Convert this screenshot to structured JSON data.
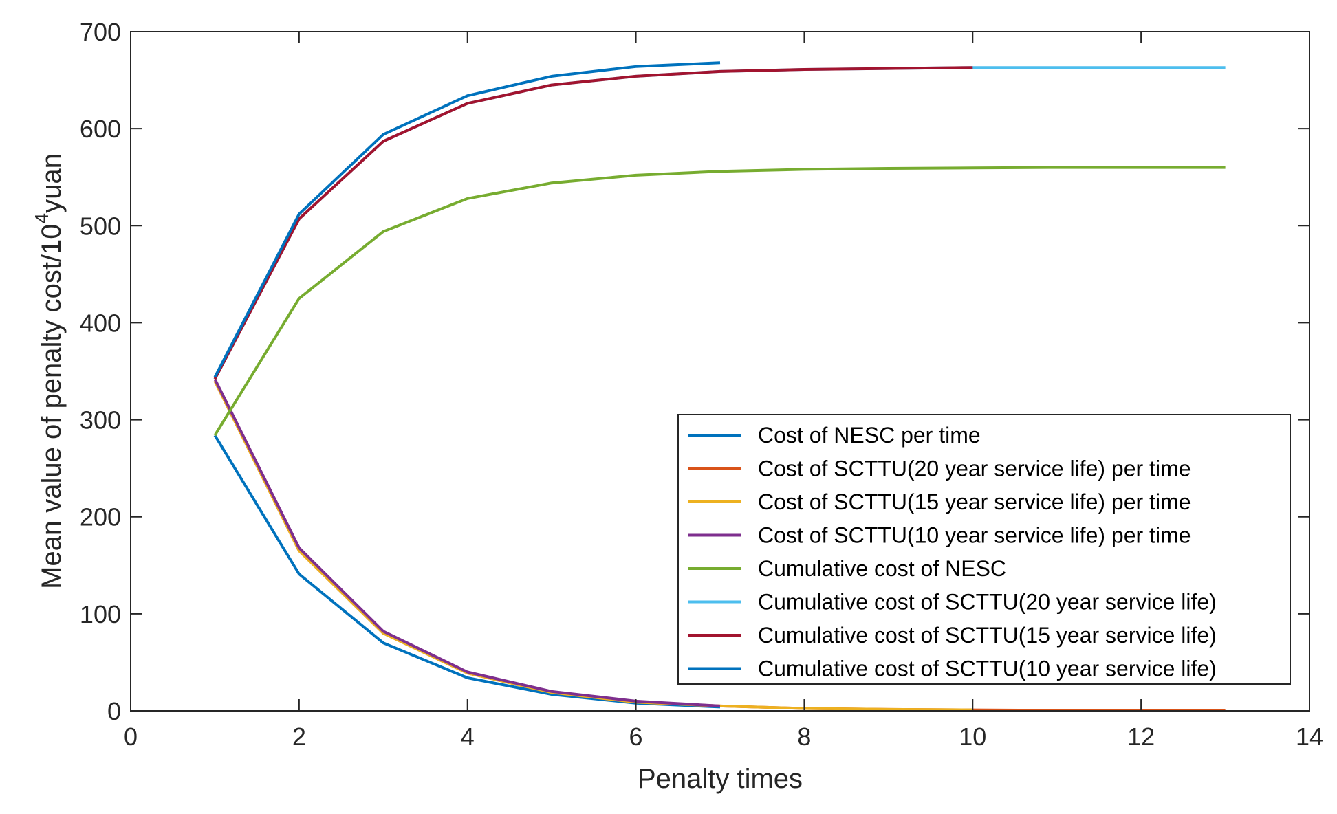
{
  "chart_data": {
    "type": "line",
    "title": "",
    "xlabel": "Penalty times",
    "ylabel_prefix": "Mean value of penalty cost/10",
    "ylabel_sup": "4",
    "ylabel_suffix": "yuan",
    "xlim": [
      0,
      14
    ],
    "ylim": [
      0,
      700
    ],
    "xticks": [
      0,
      2,
      4,
      6,
      8,
      10,
      12,
      14
    ],
    "yticks": [
      0,
      100,
      200,
      300,
      400,
      500,
      600,
      700
    ],
    "grid": false,
    "legend_position": "lower-right",
    "series": [
      {
        "name": "Cost of NESC per time",
        "color": "#0072BD",
        "x": [
          1,
          2,
          3,
          4,
          5,
          6,
          7
        ],
        "y": [
          284,
          141,
          70,
          34,
          17,
          8,
          4
        ]
      },
      {
        "name": "Cost of SCTTU(20 year service life) per time",
        "color": "#D95319",
        "x": [
          1,
          2,
          3,
          4,
          5,
          6,
          7,
          8,
          9,
          10,
          11,
          12,
          13
        ],
        "y": [
          340,
          165,
          80,
          39,
          19,
          9,
          5,
          2.5,
          1.5,
          1,
          0.5,
          0.3,
          0.2
        ]
      },
      {
        "name": "Cost of SCTTU(15 year service life) per time",
        "color": "#EDB120",
        "x": [
          1,
          2,
          3,
          4,
          5,
          6,
          7,
          8,
          9,
          10
        ],
        "y": [
          340,
          165,
          80,
          39,
          19,
          9,
          5,
          2.5,
          1.5,
          1
        ]
      },
      {
        "name": "Cost of SCTTU(10 year service life) per time",
        "color": "#7E2F8E",
        "x": [
          1,
          2,
          3,
          4,
          5,
          6,
          7
        ],
        "y": [
          342,
          168,
          82,
          40,
          20,
          10,
          5
        ]
      },
      {
        "name": "Cumulative cost of NESC",
        "color": "#77AC30",
        "x": [
          1,
          2,
          3,
          4,
          5,
          6,
          7,
          8,
          9,
          10,
          11,
          12,
          13
        ],
        "y": [
          284,
          425,
          494,
          528,
          544,
          552,
          556,
          558,
          559,
          559.5,
          560,
          560,
          560
        ]
      },
      {
        "name": "Cumulative cost of SCTTU(20 year service life)",
        "color": "#4DBEEE",
        "x": [
          1,
          2,
          3,
          4,
          5,
          6,
          7,
          8,
          9,
          10,
          11,
          12,
          13
        ],
        "y": [
          342,
          507,
          587,
          626,
          645,
          654,
          659,
          661,
          662,
          663,
          663,
          663,
          663
        ]
      },
      {
        "name": "Cumulative cost of SCTTU(15 year service life)",
        "color": "#A2142F",
        "x": [
          1,
          2,
          3,
          4,
          5,
          6,
          7,
          8,
          9,
          10
        ],
        "y": [
          342,
          507,
          587,
          626,
          645,
          654,
          659,
          661,
          662,
          663
        ]
      },
      {
        "name": "Cumulative cost of SCTTU(10 year service life)",
        "color": "#0072BD",
        "x": [
          1,
          2,
          3,
          4,
          5,
          6,
          7
        ],
        "y": [
          344,
          512,
          594,
          634,
          654,
          664,
          668
        ]
      }
    ]
  }
}
